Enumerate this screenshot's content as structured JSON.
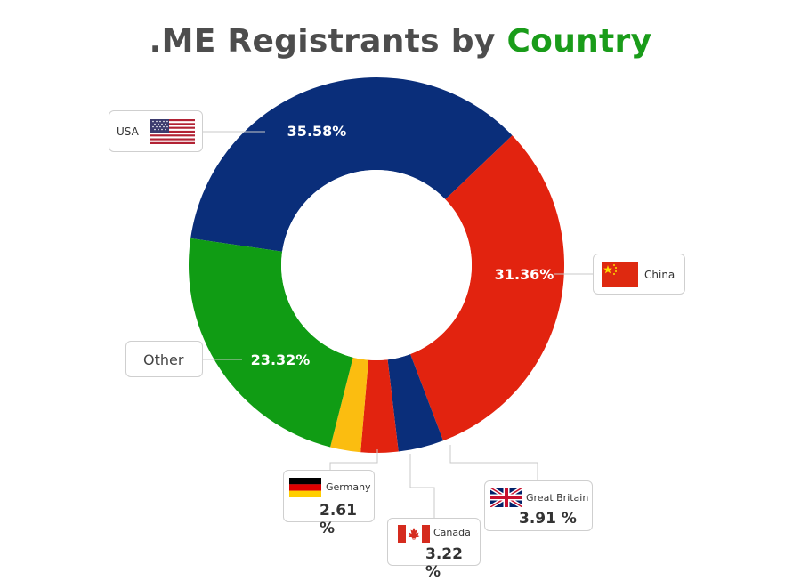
{
  "title": {
    "prefix": ".ME Registrants by",
    "highlight": "Country"
  },
  "colors": {
    "usa": "#0a2e7a",
    "china": "#e2230f",
    "gb": "#0a2e7a",
    "canada": "#e2230f",
    "germany": "#fbbd10",
    "other": "#109c14",
    "title_gray": "#4d4d4d",
    "title_green": "#1a9c1a"
  },
  "chart_data": {
    "type": "pie",
    "donut": true,
    "title": ".ME Registrants by Country",
    "slices": [
      {
        "name": "USA",
        "value": 35.58,
        "label": "35.58%",
        "color": "#0a2e7a",
        "flag": "usa-flag-icon"
      },
      {
        "name": "China",
        "value": 31.36,
        "label": "31.36%",
        "color": "#e2230f",
        "flag": "china-flag-icon"
      },
      {
        "name": "Great Britain",
        "value": 3.91,
        "label": "3.91 %",
        "color": "#0a2e7a",
        "flag": "uk-flag-icon"
      },
      {
        "name": "Canada",
        "value": 3.22,
        "label": "3.22 %",
        "color": "#e2230f",
        "flag": "canada-flag-icon"
      },
      {
        "name": "Germany",
        "value": 2.61,
        "label": "2.61 %",
        "color": "#fbbd10",
        "flag": "germany-flag-icon"
      },
      {
        "name": "Other",
        "value": 23.32,
        "label": "23.32%",
        "color": "#109c14"
      }
    ]
  }
}
